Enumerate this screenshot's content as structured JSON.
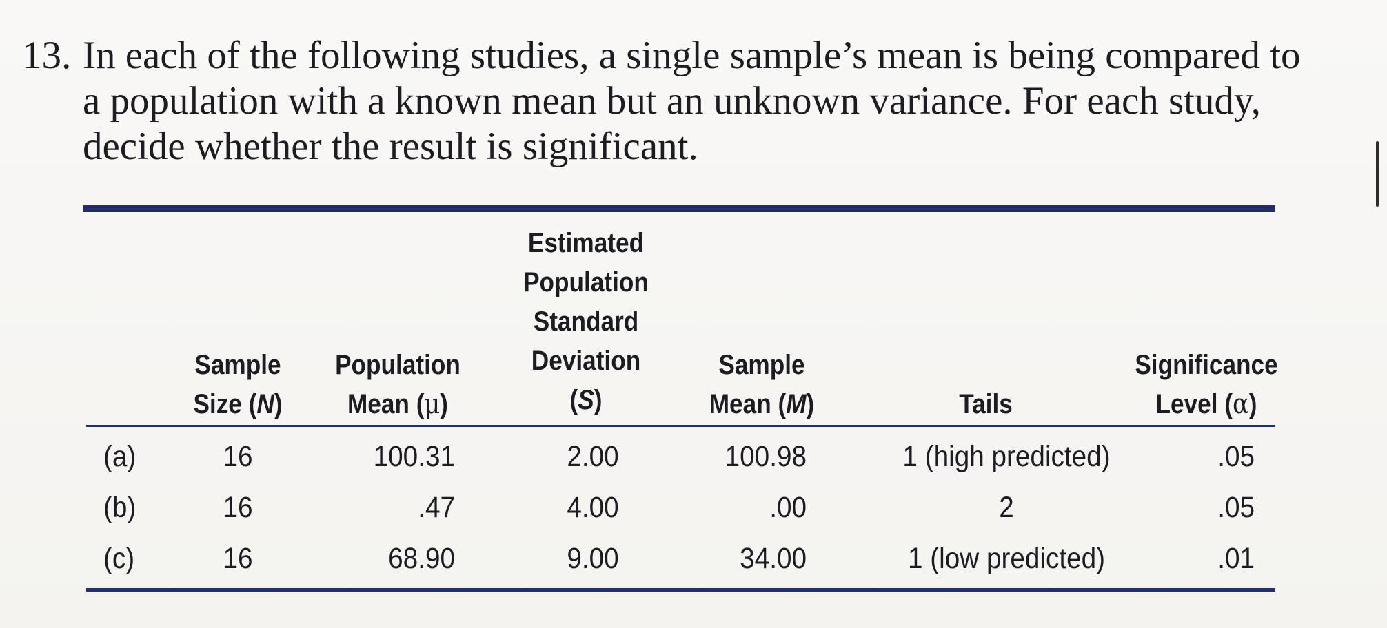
{
  "problem": {
    "number": "13.",
    "text": "In each of the following studies, a single sample’s mean is being compared to a population with a known mean but an unknown variance. For each study, decide whether the result is significant."
  },
  "table": {
    "headers": {
      "n": {
        "line1": "Sample",
        "line2_prefix": "Size (",
        "line2_var": "N",
        "line2_suffix": ")"
      },
      "mu": {
        "line1": "Population",
        "line2_prefix": "Mean (",
        "line2_var": "μ",
        "line2_suffix": ")"
      },
      "s": {
        "line1": "Estimated",
        "line2": "Population",
        "line3": "Standard",
        "line4": "Deviation",
        "line5_prefix": "(",
        "line5_var": "S",
        "line5_suffix": ")"
      },
      "m": {
        "line1": "Sample",
        "line2_prefix": "Mean (",
        "line2_var": "M",
        "line2_suffix": ")"
      },
      "tails": {
        "line1": "Tails"
      },
      "alpha": {
        "line1": "Significance",
        "line2_prefix": "Level (",
        "line2_var": "α",
        "line2_suffix": ")"
      }
    },
    "rows": [
      {
        "label": "(a)",
        "n": "16",
        "mu": "100.31",
        "s": "2.00",
        "m": "100.98",
        "tails": "1 (high predicted)",
        "alpha": ".05"
      },
      {
        "label": "(b)",
        "n": "16",
        "mu": ".47",
        "s": "4.00",
        "m": ".00",
        "tails": "2",
        "alpha": ".05"
      },
      {
        "label": "(c)",
        "n": "16",
        "mu": "68.90",
        "s": "9.00",
        "m": "34.00",
        "tails": "1 (low predicted)",
        "alpha": ".01"
      }
    ]
  },
  "colors": {
    "rule": "#232e6b",
    "text": "#1c1c22",
    "paper": "#f7f6f3"
  }
}
